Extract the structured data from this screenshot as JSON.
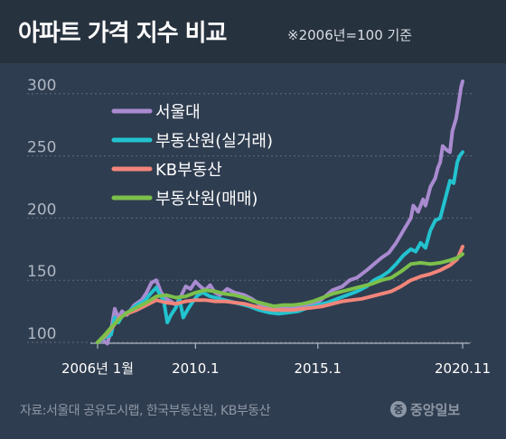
{
  "header": {
    "title": "아파트 가격 지수 비교",
    "subtitle": "※2006년=100 기준"
  },
  "footer": {
    "source": "자료:서울대 공유도시랩, 한국부동산원, KB부동산",
    "brand_mark": "중",
    "brand_name": "중앙일보"
  },
  "colors": {
    "background": "#2f3d50",
    "header_bg": "#27323f",
    "seoul": "#a98bd0",
    "reb_real": "#22c3cf",
    "kb": "#f2857a",
    "reb_sale": "#7cc04b"
  },
  "chart_data": {
    "type": "line",
    "title": "아파트 가격 지수 비교",
    "subtitle": "※2006년=100 기준",
    "xlabel": "",
    "ylabel": "",
    "x_range": [
      2006.0,
      2020.917
    ],
    "ylim": [
      100,
      310
    ],
    "yticks": [
      100,
      150,
      200,
      250,
      300
    ],
    "xticks": [
      {
        "value": 2006.0,
        "label": "2006년 1월"
      },
      {
        "value": 2010.0,
        "label": "2010.1"
      },
      {
        "value": 2015.0,
        "label": "2015.1"
      },
      {
        "value": 2020.917,
        "label": "2020.11"
      }
    ],
    "grid": "horizontal-dotted",
    "legend_position": "top-left",
    "series": [
      {
        "name": "서울대",
        "color": "#a98bd0",
        "points": [
          [
            2006.0,
            100
          ],
          [
            2006.2,
            102
          ],
          [
            2006.4,
            99
          ],
          [
            2006.55,
            110
          ],
          [
            2006.7,
            127
          ],
          [
            2006.85,
            120
          ],
          [
            2007.0,
            125
          ],
          [
            2007.2,
            122
          ],
          [
            2007.5,
            130
          ],
          [
            2007.8,
            134
          ],
          [
            2008.0,
            140
          ],
          [
            2008.2,
            148
          ],
          [
            2008.4,
            150
          ],
          [
            2008.6,
            140
          ],
          [
            2008.8,
            135
          ],
          [
            2009.0,
            133
          ],
          [
            2009.2,
            130
          ],
          [
            2009.4,
            137
          ],
          [
            2009.6,
            145
          ],
          [
            2009.8,
            143
          ],
          [
            2010.0,
            149
          ],
          [
            2010.2,
            145
          ],
          [
            2010.4,
            142
          ],
          [
            2010.6,
            146
          ],
          [
            2010.8,
            140
          ],
          [
            2011.0,
            138
          ],
          [
            2011.3,
            143
          ],
          [
            2011.6,
            140
          ],
          [
            2012.0,
            138
          ],
          [
            2012.3,
            135
          ],
          [
            2012.6,
            131
          ],
          [
            2012.9,
            128
          ],
          [
            2013.2,
            126
          ],
          [
            2013.5,
            129
          ],
          [
            2013.8,
            127
          ],
          [
            2014.2,
            128
          ],
          [
            2014.6,
            130
          ],
          [
            2015.0,
            132
          ],
          [
            2015.3,
            137
          ],
          [
            2015.6,
            142
          ],
          [
            2016.0,
            145
          ],
          [
            2016.3,
            150
          ],
          [
            2016.6,
            152
          ],
          [
            2017.0,
            158
          ],
          [
            2017.3,
            163
          ],
          [
            2017.6,
            168
          ],
          [
            2017.9,
            172
          ],
          [
            2018.2,
            180
          ],
          [
            2018.5,
            190
          ],
          [
            2018.8,
            200
          ],
          [
            2018.9,
            210
          ],
          [
            2019.1,
            205
          ],
          [
            2019.3,
            215
          ],
          [
            2019.4,
            210
          ],
          [
            2019.6,
            225
          ],
          [
            2019.8,
            232
          ],
          [
            2019.9,
            240
          ],
          [
            2020.0,
            245
          ],
          [
            2020.1,
            258
          ],
          [
            2020.25,
            255
          ],
          [
            2020.4,
            253
          ],
          [
            2020.5,
            270
          ],
          [
            2020.65,
            280
          ],
          [
            2020.75,
            292
          ],
          [
            2020.85,
            305
          ],
          [
            2020.917,
            310
          ]
        ]
      },
      {
        "name": "부동산원(실거래)",
        "color": "#22c3cf",
        "points": [
          [
            2006.0,
            100
          ],
          [
            2006.3,
            104
          ],
          [
            2006.55,
            106
          ],
          [
            2006.7,
            120
          ],
          [
            2006.85,
            116
          ],
          [
            2007.0,
            121
          ],
          [
            2007.3,
            125
          ],
          [
            2007.6,
            130
          ],
          [
            2007.9,
            133
          ],
          [
            2008.2,
            140
          ],
          [
            2008.4,
            144
          ],
          [
            2008.55,
            138
          ],
          [
            2008.7,
            134
          ],
          [
            2008.85,
            116
          ],
          [
            2009.0,
            122
          ],
          [
            2009.2,
            128
          ],
          [
            2009.35,
            135
          ],
          [
            2009.5,
            120
          ],
          [
            2009.7,
            127
          ],
          [
            2009.9,
            133
          ],
          [
            2010.1,
            138
          ],
          [
            2010.3,
            140
          ],
          [
            2010.6,
            137
          ],
          [
            2011.0,
            135
          ],
          [
            2011.4,
            133
          ],
          [
            2011.8,
            131
          ],
          [
            2012.2,
            129
          ],
          [
            2012.6,
            126
          ],
          [
            2013.0,
            124
          ],
          [
            2013.4,
            123
          ],
          [
            2013.8,
            124
          ],
          [
            2014.2,
            125
          ],
          [
            2014.6,
            128
          ],
          [
            2015.0,
            130
          ],
          [
            2015.4,
            132
          ],
          [
            2015.8,
            135
          ],
          [
            2016.2,
            138
          ],
          [
            2016.6,
            141
          ],
          [
            2017.0,
            145
          ],
          [
            2017.3,
            150
          ],
          [
            2017.6,
            153
          ],
          [
            2017.9,
            157
          ],
          [
            2018.2,
            163
          ],
          [
            2018.5,
            170
          ],
          [
            2018.8,
            175
          ],
          [
            2019.0,
            173
          ],
          [
            2019.2,
            180
          ],
          [
            2019.4,
            176
          ],
          [
            2019.6,
            190
          ],
          [
            2019.8,
            198
          ],
          [
            2020.0,
            200
          ],
          [
            2020.2,
            215
          ],
          [
            2020.4,
            230
          ],
          [
            2020.55,
            228
          ],
          [
            2020.7,
            245
          ],
          [
            2020.8,
            250
          ],
          [
            2020.917,
            253
          ]
        ]
      },
      {
        "name": "KB부동산",
        "color": "#f2857a",
        "points": [
          [
            2006.0,
            100
          ],
          [
            2006.3,
            105
          ],
          [
            2006.6,
            112
          ],
          [
            2006.9,
            120
          ],
          [
            2007.2,
            123
          ],
          [
            2007.6,
            126
          ],
          [
            2008.0,
            130
          ],
          [
            2008.4,
            134
          ],
          [
            2008.8,
            132
          ],
          [
            2009.2,
            131
          ],
          [
            2009.6,
            133
          ],
          [
            2010.0,
            134
          ],
          [
            2010.4,
            134
          ],
          [
            2010.8,
            133
          ],
          [
            2011.2,
            133
          ],
          [
            2011.6,
            132
          ],
          [
            2012.0,
            131
          ],
          [
            2012.4,
            129
          ],
          [
            2012.8,
            127
          ],
          [
            2013.2,
            126
          ],
          [
            2013.6,
            126
          ],
          [
            2014.0,
            126
          ],
          [
            2014.4,
            127
          ],
          [
            2014.8,
            128
          ],
          [
            2015.2,
            129
          ],
          [
            2015.6,
            131
          ],
          [
            2016.0,
            133
          ],
          [
            2016.4,
            134
          ],
          [
            2016.8,
            135
          ],
          [
            2017.2,
            137
          ],
          [
            2017.6,
            139
          ],
          [
            2018.0,
            141
          ],
          [
            2018.4,
            145
          ],
          [
            2018.8,
            150
          ],
          [
            2019.2,
            153
          ],
          [
            2019.6,
            155
          ],
          [
            2020.0,
            158
          ],
          [
            2020.4,
            162
          ],
          [
            2020.7,
            167
          ],
          [
            2020.917,
            177
          ]
        ]
      },
      {
        "name": "부동산원(매매)",
        "color": "#7cc04b",
        "points": [
          [
            2006.0,
            100
          ],
          [
            2006.3,
            106
          ],
          [
            2006.6,
            113
          ],
          [
            2006.9,
            119
          ],
          [
            2007.2,
            124
          ],
          [
            2007.6,
            128
          ],
          [
            2008.0,
            132
          ],
          [
            2008.4,
            137
          ],
          [
            2008.8,
            138
          ],
          [
            2009.2,
            136
          ],
          [
            2009.6,
            137
          ],
          [
            2010.0,
            140
          ],
          [
            2010.4,
            142
          ],
          [
            2010.8,
            141
          ],
          [
            2011.2,
            139
          ],
          [
            2011.6,
            138
          ],
          [
            2012.0,
            136
          ],
          [
            2012.4,
            133
          ],
          [
            2012.8,
            131
          ],
          [
            2013.2,
            129
          ],
          [
            2013.6,
            130
          ],
          [
            2014.0,
            130
          ],
          [
            2014.4,
            131
          ],
          [
            2014.8,
            133
          ],
          [
            2015.2,
            136
          ],
          [
            2015.6,
            139
          ],
          [
            2016.0,
            141
          ],
          [
            2016.4,
            143
          ],
          [
            2016.8,
            145
          ],
          [
            2017.2,
            147
          ],
          [
            2017.6,
            150
          ],
          [
            2018.0,
            152
          ],
          [
            2018.4,
            157
          ],
          [
            2018.8,
            163
          ],
          [
            2019.2,
            164
          ],
          [
            2019.6,
            163
          ],
          [
            2020.0,
            164
          ],
          [
            2020.4,
            166
          ],
          [
            2020.7,
            168
          ],
          [
            2020.917,
            171
          ]
        ]
      }
    ]
  }
}
